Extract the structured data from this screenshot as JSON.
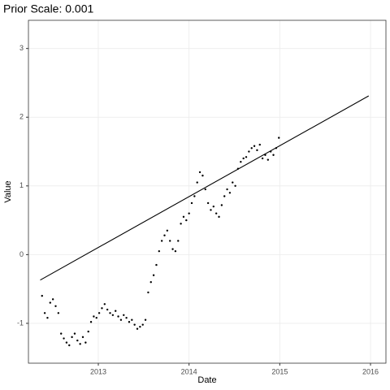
{
  "chart_data": {
    "type": "scatter",
    "title": "Prior Scale: 0.001",
    "x_label": "Date",
    "y_label": "Value",
    "x": [
      2012.38,
      2012.41,
      2012.44,
      2012.47,
      2012.5,
      2012.53,
      2012.56,
      2012.59,
      2012.62,
      2012.65,
      2012.68,
      2012.71,
      2012.74,
      2012.77,
      2012.8,
      2012.83,
      2012.86,
      2012.89,
      2012.92,
      2012.95,
      2012.98,
      2013.01,
      2013.04,
      2013.07,
      2013.1,
      2013.13,
      2013.16,
      2013.19,
      2013.22,
      2013.25,
      2013.28,
      2013.31,
      2013.34,
      2013.37,
      2013.4,
      2013.43,
      2013.46,
      2013.49,
      2013.52,
      2013.55,
      2013.58,
      2013.61,
      2013.64,
      2013.67,
      2013.7,
      2013.73,
      2013.76,
      2013.79,
      2013.82,
      2013.85,
      2013.88,
      2013.91,
      2013.94,
      2013.97,
      2014.0,
      2014.03,
      2014.06,
      2014.09,
      2014.12,
      2014.15,
      2014.18,
      2014.21,
      2014.24,
      2014.27,
      2014.3,
      2014.33,
      2014.36,
      2014.39,
      2014.42,
      2014.45,
      2014.48,
      2014.51,
      2014.54,
      2014.57,
      2014.6,
      2014.63,
      2014.66,
      2014.69,
      2014.72,
      2014.75,
      2014.78,
      2014.81,
      2014.84,
      2014.87,
      2014.9,
      2014.93,
      2014.96,
      2014.99
    ],
    "values": [
      -0.6,
      -0.85,
      -0.92,
      -0.7,
      -0.65,
      -0.75,
      -0.85,
      -1.15,
      -1.22,
      -1.28,
      -1.32,
      -1.2,
      -1.15,
      -1.25,
      -1.3,
      -1.2,
      -1.28,
      -1.12,
      -0.98,
      -0.9,
      -0.92,
      -0.85,
      -0.78,
      -0.72,
      -0.8,
      -0.85,
      -0.88,
      -0.82,
      -0.9,
      -0.95,
      -0.88,
      -0.92,
      -0.98,
      -0.95,
      -1.02,
      -1.08,
      -1.05,
      -1.02,
      -0.95,
      -0.55,
      -0.4,
      -0.3,
      -0.15,
      0.05,
      0.2,
      0.28,
      0.35,
      0.2,
      0.08,
      0.05,
      0.2,
      0.45,
      0.55,
      0.5,
      0.6,
      0.75,
      0.85,
      1.05,
      1.2,
      1.15,
      0.95,
      0.75,
      0.65,
      0.7,
      0.6,
      0.55,
      0.72,
      0.85,
      0.95,
      0.9,
      1.05,
      1.0,
      1.25,
      1.35,
      1.4,
      1.42,
      1.5,
      1.55,
      1.58,
      1.52,
      1.6,
      1.4,
      1.45,
      1.38,
      1.5,
      1.45,
      1.55,
      1.7
    ],
    "color": "#000000",
    "trend": {
      "x": [
        2012.36,
        2015.98
      ],
      "values": [
        -0.37,
        2.31
      ],
      "color": "#000000"
    },
    "xlim": [
      2012.23,
      2016.17
    ],
    "xticks": [
      2013,
      2014,
      2015,
      2016
    ],
    "ylim": [
      -1.58,
      3.41
    ],
    "yticks": [
      -1,
      0,
      1,
      2,
      3
    ],
    "grid": true
  }
}
